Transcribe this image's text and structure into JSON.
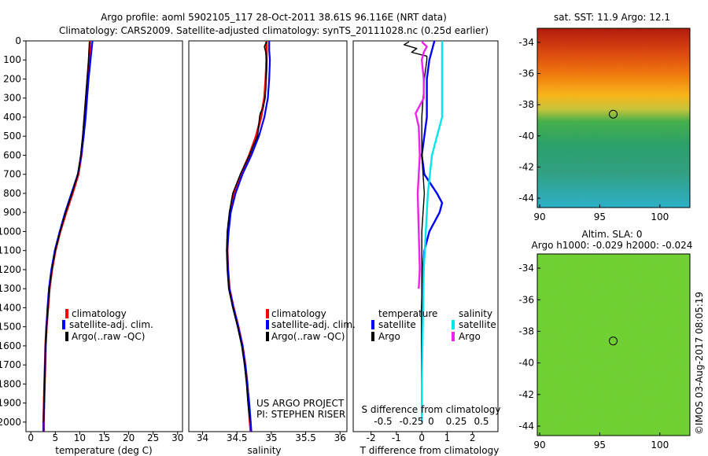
{
  "header": {
    "line1": "Argo profile: aoml 5902105_117 28-Oct-2011 38.61S 96.116E (NRT data)",
    "line2": "Climatology: CARS2009. Satellite-adjusted climatology: synTS_20111028.nc (0.25d earlier)"
  },
  "credit": "©IMOS 03-Aug-2017 08:05:19",
  "colors": {
    "climatology": "#ff0000",
    "satellite": "#0000ff",
    "argo": "#000000",
    "sat_sal": "#00e5ee",
    "argo_sal": "#ee22ee"
  },
  "chart_data": [
    {
      "id": "temperature",
      "type": "line",
      "xlabel": "temperature (deg C)",
      "ylabel": "",
      "xlim": [
        -1,
        31
      ],
      "ylim": [
        0,
        2050
      ],
      "xticks": [
        0,
        5,
        10,
        15,
        20,
        25,
        30
      ],
      "yticks": [
        0,
        100,
        200,
        300,
        400,
        500,
        600,
        700,
        800,
        900,
        1000,
        1100,
        1200,
        1300,
        1400,
        1500,
        1600,
        1700,
        1800,
        1900,
        2000
      ],
      "legend": [
        "climatology",
        "satellite-adj. clim.",
        "Argo(..raw -QC)"
      ],
      "series": [
        {
          "name": "climatology",
          "depth": [
            0,
            50,
            100,
            200,
            300,
            400,
            500,
            600,
            700,
            800,
            900,
            1000,
            1100,
            1200,
            1300,
            1400,
            1500,
            1600,
            1700,
            1800,
            1900,
            2000,
            2050
          ],
          "values": [
            12.1,
            12.0,
            11.9,
            11.6,
            11.3,
            11.0,
            10.7,
            10.3,
            9.7,
            8.5,
            7.2,
            6.0,
            5.0,
            4.3,
            3.8,
            3.5,
            3.2,
            3.0,
            2.9,
            2.8,
            2.7,
            2.6,
            2.6
          ]
        },
        {
          "name": "satellite-adj. clim.",
          "depth": [
            0,
            50,
            100,
            200,
            300,
            400,
            500,
            600,
            700,
            800,
            900,
            1000,
            1100,
            1200,
            1300,
            1400,
            1500,
            1600,
            1700,
            1800,
            1900,
            2000,
            2050
          ],
          "values": [
            12.6,
            12.4,
            12.2,
            11.8,
            11.5,
            11.2,
            10.8,
            10.3,
            9.6,
            8.3,
            7.0,
            5.9,
            4.9,
            4.2,
            3.7,
            3.4,
            3.2,
            3.0,
            2.9,
            2.8,
            2.7,
            2.6,
            2.6
          ]
        },
        {
          "name": "Argo(..raw -QC)",
          "depth": [
            5,
            50,
            100,
            200,
            300,
            400,
            500,
            600,
            700,
            800,
            900,
            1000,
            1100,
            1200,
            1300,
            1400,
            1500,
            1600,
            1700,
            1800,
            1900,
            2000
          ],
          "values": [
            12.0,
            11.9,
            11.8,
            11.5,
            11.2,
            10.9,
            10.6,
            10.2,
            9.6,
            8.4,
            7.1,
            6.0,
            5.0,
            4.3,
            3.8,
            3.5,
            3.2,
            3.0,
            2.9,
            2.8,
            2.7,
            2.6
          ]
        }
      ]
    },
    {
      "id": "salinity",
      "type": "line",
      "xlabel": "salinity",
      "xlim": [
        33.8,
        36.1
      ],
      "ylim": [
        0,
        2050
      ],
      "xticks": [
        34,
        34.5,
        35,
        35.5,
        36
      ],
      "legend": [
        "climatology",
        "satellite-adj. clim.",
        "Argo(..raw -QC)"
      ],
      "annotation": [
        "US ARGO PROJECT",
        "PI: STEPHEN RISER"
      ],
      "series": [
        {
          "name": "climatology",
          "depth": [
            0,
            50,
            100,
            200,
            300,
            400,
            500,
            600,
            700,
            800,
            900,
            1000,
            1100,
            1200,
            1300,
            1400,
            1500,
            1600,
            1700,
            1800,
            1900,
            2000,
            2050
          ],
          "values": [
            34.93,
            34.93,
            34.93,
            34.92,
            34.9,
            34.85,
            34.78,
            34.68,
            34.56,
            34.46,
            34.4,
            34.37,
            34.36,
            34.37,
            34.39,
            34.45,
            34.52,
            34.58,
            34.62,
            34.65,
            34.67,
            34.69,
            34.7
          ]
        },
        {
          "name": "satellite-adj. clim.",
          "depth": [
            0,
            50,
            100,
            200,
            300,
            400,
            500,
            600,
            700,
            800,
            900,
            1000,
            1100,
            1200,
            1300,
            1400,
            1500,
            1600,
            1700,
            1800,
            1900,
            2000,
            2050
          ],
          "values": [
            34.97,
            34.97,
            34.98,
            34.97,
            34.95,
            34.9,
            34.82,
            34.71,
            34.58,
            34.48,
            34.41,
            34.38,
            34.36,
            34.37,
            34.39,
            34.45,
            34.52,
            34.58,
            34.62,
            34.65,
            34.68,
            34.7,
            34.71
          ]
        },
        {
          "name": "Argo(..raw -QC)",
          "depth": [
            5,
            30,
            60,
            100,
            150,
            200,
            250,
            300,
            350,
            380,
            400,
            500,
            600,
            700,
            800,
            900,
            1000,
            1100,
            1200,
            1300,
            1400,
            1500,
            1600,
            1700,
            1800,
            1900,
            2000
          ],
          "values": [
            34.93,
            34.9,
            34.92,
            34.93,
            34.93,
            34.92,
            34.92,
            34.91,
            34.88,
            34.84,
            34.83,
            34.8,
            34.68,
            34.55,
            34.44,
            34.39,
            34.36,
            34.35,
            34.36,
            34.38,
            34.44,
            34.51,
            34.57,
            34.61,
            34.64,
            34.66,
            34.69
          ]
        }
      ]
    },
    {
      "id": "difference",
      "type": "line",
      "xlabel": "T difference from climatology",
      "toplabel": "S difference from climatology",
      "xlim": [
        -2.7,
        3.0
      ],
      "ylim": [
        0,
        2050
      ],
      "xticks": [
        -2,
        -1,
        0,
        1,
        2
      ],
      "xticks_top": [
        "-0.5",
        "-0.25",
        "0",
        "0.25",
        "0.5"
      ],
      "legend_headers": [
        "temperature",
        "salinity"
      ],
      "legend": [
        "satellite",
        "Argo",
        "satellite",
        "Argo"
      ],
      "series": [
        {
          "name": "temperature satellite",
          "depth": [
            0,
            100,
            200,
            300,
            400,
            500,
            600,
            700,
            800,
            850,
            900,
            950,
            1000,
            1100,
            1200,
            1400,
            1600,
            1800,
            2000
          ],
          "values": [
            0.5,
            0.3,
            0.2,
            0.2,
            0.2,
            0.1,
            0.0,
            0.1,
            0.6,
            0.8,
            0.7,
            0.5,
            0.3,
            0.1,
            0.05,
            0.0,
            0.0,
            0.0,
            0.0
          ]
        },
        {
          "name": "temperature Argo",
          "depth": [
            5,
            20,
            40,
            60,
            80,
            100,
            200,
            400,
            600,
            800,
            1000,
            1200,
            1500,
            1800,
            2000
          ],
          "values": [
            -0.5,
            -0.7,
            -0.2,
            -0.4,
            0.2,
            0.2,
            0.1,
            0.0,
            0.0,
            0.1,
            0.0,
            0.0,
            0.0,
            0.0,
            0.0
          ]
        },
        {
          "name": "salinity satellite",
          "depth": [
            0,
            100,
            200,
            300,
            400,
            500,
            600,
            700,
            800,
            1000,
            1200,
            1500,
            1800,
            2000
          ],
          "values": [
            0.2,
            0.2,
            0.2,
            0.2,
            0.2,
            0.15,
            0.1,
            0.08,
            0.06,
            0.04,
            0.02,
            0.01,
            0.0,
            0.0
          ]
        },
        {
          "name": "salinity Argo",
          "depth": [
            5,
            30,
            60,
            100,
            200,
            300,
            380,
            450,
            600,
            800,
            1000,
            1200,
            1300
          ],
          "values": [
            0.0,
            0.05,
            0.02,
            0.0,
            0.02,
            0.02,
            -0.06,
            -0.03,
            -0.02,
            -0.04,
            -0.03,
            -0.02,
            -0.03
          ]
        }
      ]
    },
    {
      "id": "sst-map",
      "type": "heatmap",
      "title": "sat. SST: 11.9 Argo: 12.1",
      "xticks": [
        90,
        95,
        100
      ],
      "yticks": [
        -34,
        -36,
        -38,
        -40,
        -42,
        -44
      ],
      "xlim": [
        89.8,
        102.5
      ],
      "ylim": [
        -44.6,
        -33.1
      ],
      "marker": {
        "lon": 96.116,
        "lat": -38.61
      }
    },
    {
      "id": "sla-map",
      "type": "heatmap",
      "title": [
        "Altim. SLA: 0",
        "Argo h1000: -0.029 h2000: -0.024"
      ],
      "xticks": [
        90,
        95,
        100
      ],
      "yticks": [
        -34,
        -36,
        -38,
        -40,
        -42,
        -44
      ],
      "xlim": [
        89.8,
        102.5
      ],
      "ylim": [
        -44.6,
        -33.1
      ],
      "marker": {
        "lon": 96.116,
        "lat": -38.61
      }
    }
  ]
}
